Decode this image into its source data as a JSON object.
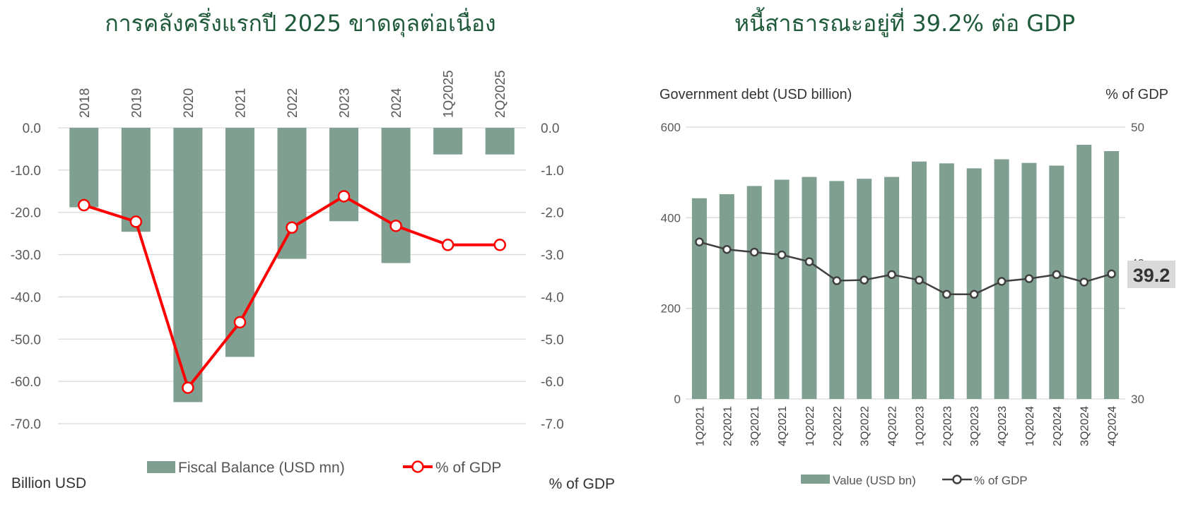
{
  "chart_data": [
    {
      "type": "bar",
      "title": "การคลังครึ่งแรกปี 2025 ขาดดุลต่อเนื่อง",
      "categories": [
        "2018",
        "2019",
        "2020",
        "2021",
        "2022",
        "2023",
        "2024",
        "1Q2025",
        "2Q2025"
      ],
      "ylabel": "Billion USD",
      "y2label": "% of GDP",
      "ylim": [
        -70,
        0
      ],
      "y2lim": [
        -7,
        0
      ],
      "yticks": [
        "0.0",
        "-10.0",
        "-20.0",
        "-30.0",
        "-40.0",
        "-50.0",
        "-60.0",
        "-70.0"
      ],
      "y2ticks": [
        "0.0",
        "-1.0",
        "-2.0",
        "-3.0",
        "-4.0",
        "-5.0",
        "-6.0",
        "-7.0"
      ],
      "grid": true,
      "legend_position": "bottom",
      "series": [
        {
          "name": "Fiscal Balance (USD mn)",
          "type": "bar",
          "axis": "left",
          "color": "#7f9f91",
          "values": [
            -18.8,
            -24.6,
            -64.9,
            -54.2,
            -31.0,
            -22.1,
            -32.0,
            -6.3,
            -6.3
          ]
        },
        {
          "name": "% of GDP",
          "type": "line",
          "axis": "right",
          "color": "#ff0000",
          "marker": "circle-hollow",
          "values": [
            -1.83,
            -2.22,
            -6.15,
            -4.6,
            -2.36,
            -1.62,
            -2.32,
            -2.77,
            -2.77
          ]
        }
      ]
    },
    {
      "type": "bar",
      "title": "หนี้สาธารณะอยู่ที่ 39.2% ต่อ GDP",
      "categories": [
        "1Q2021",
        "2Q2021",
        "3Q2021",
        "4Q2021",
        "1Q2022",
        "2Q2022",
        "3Q2022",
        "4Q2022",
        "1Q2023",
        "2Q2023",
        "3Q2023",
        "4Q2023",
        "1Q2024",
        "2Q2024",
        "3Q2024",
        "4Q2024"
      ],
      "ylabel": "Government debt (USD billion)",
      "y2label": "% of GDP",
      "ylim": [
        0,
        600
      ],
      "y2lim": [
        30,
        50
      ],
      "yticks": [
        "0",
        "200",
        "400",
        "600"
      ],
      "y2ticks": [
        "30",
        "40",
        "50"
      ],
      "grid": true,
      "legend_position": "bottom",
      "annotation": "39.2",
      "series": [
        {
          "name": "Value (USD bn)",
          "type": "bar",
          "axis": "left",
          "color": "#7f9f91",
          "values": [
            443,
            452,
            470,
            484,
            490,
            481,
            486,
            490,
            524,
            520,
            509,
            529,
            521,
            515,
            561,
            547
          ]
        },
        {
          "name": "% of GDP",
          "type": "line",
          "axis": "right",
          "color": "#404040",
          "marker": "circle-hollow",
          "values": [
            41.55,
            41.0,
            40.8,
            40.6,
            40.1,
            38.7,
            38.75,
            39.15,
            38.75,
            37.7,
            37.7,
            38.65,
            38.85,
            39.15,
            38.6,
            39.2
          ]
        }
      ]
    }
  ]
}
